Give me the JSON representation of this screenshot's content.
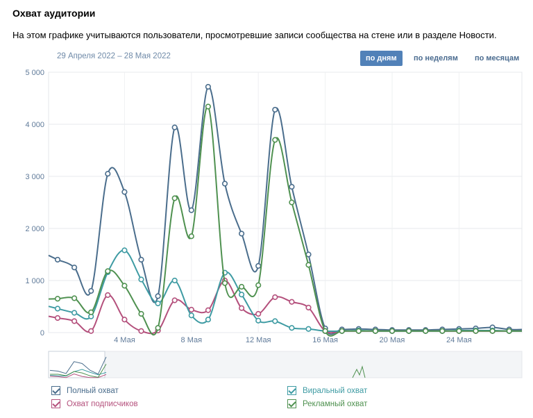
{
  "header": {
    "title": "Охват аудитории",
    "description": "На этом графике учитываются пользователи, просмотревшие записи сообщества на стене или в разделе Новости.",
    "date_range": "29 Апреля 2022 – 28 Мая 2022"
  },
  "period_buttons": {
    "day": "по дням",
    "week": "по неделям",
    "month": "по месяцам",
    "active": "day"
  },
  "legend": [
    {
      "label": "Полный охват",
      "color": "#4a6d8c"
    },
    {
      "label": "Охват подписчиков",
      "color": "#b4507c"
    },
    {
      "label": "Виральный охват",
      "color": "#3e9ba3"
    },
    {
      "label": "Рекламный охват",
      "color": "#4f9150"
    }
  ],
  "chart_data": {
    "type": "line",
    "x": [
      "Апр 30",
      "Май 1",
      "Май 2",
      "Май 3",
      "Май 4",
      "Май 5",
      "Май 6",
      "Май 7",
      "Май 8",
      "Май 9",
      "Май 10",
      "Май 11",
      "Май 12",
      "Май 13",
      "Май 14",
      "Май 15",
      "Май 16",
      "Май 17",
      "Май 18",
      "Май 19",
      "Май 20",
      "Май 21",
      "Май 22",
      "Май 23",
      "Май 24",
      "Май 25",
      "Май 26",
      "Май 27"
    ],
    "x_ticks": [
      "4 Мая",
      "8 Мая",
      "12 Мая",
      "16 Мая",
      "20 Мая",
      "24 Мая"
    ],
    "y_ticks": [
      "0",
      "1 000",
      "2 000",
      "3 000",
      "4 000",
      "5 000"
    ],
    "ylim": [
      0,
      5000
    ],
    "grid": true,
    "legend_position": "bottom",
    "series": [
      {
        "name": "Полный охват",
        "color": "#4a6d8c",
        "values": [
          1400,
          1250,
          800,
          3050,
          2700,
          1400,
          700,
          3940,
          2350,
          4720,
          2860,
          1900,
          1280,
          4280,
          2800,
          1500,
          80,
          60,
          70,
          60,
          50,
          50,
          50,
          60,
          70,
          80,
          100,
          60
        ]
      },
      {
        "name": "Охват подписчиков",
        "color": "#b4507c",
        "values": [
          280,
          220,
          30,
          720,
          250,
          30,
          40,
          620,
          440,
          430,
          1000,
          470,
          360,
          680,
          590,
          480,
          30,
          30,
          30,
          30,
          30,
          30,
          30,
          30,
          30,
          30,
          30,
          30
        ]
      },
      {
        "name": "Виральный охват",
        "color": "#3e9ba3",
        "values": [
          460,
          380,
          310,
          1160,
          1580,
          1020,
          560,
          1000,
          330,
          250,
          1150,
          730,
          230,
          220,
          90,
          70,
          30,
          30,
          40,
          30,
          30,
          30,
          30,
          30,
          40,
          40,
          40,
          30
        ]
      },
      {
        "name": "Рекламный охват",
        "color": "#4f9150",
        "values": [
          650,
          660,
          390,
          1180,
          900,
          360,
          90,
          2580,
          1850,
          4340,
          950,
          880,
          910,
          3700,
          2500,
          1300,
          30,
          30,
          30,
          30,
          30,
          30,
          30,
          30,
          30,
          30,
          30,
          30
        ]
      }
    ]
  }
}
